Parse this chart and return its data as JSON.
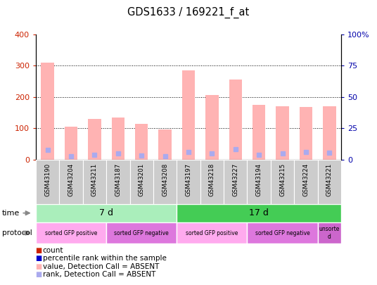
{
  "title": "GDS1633 / 169221_f_at",
  "samples": [
    "GSM43190",
    "GSM43204",
    "GSM43211",
    "GSM43187",
    "GSM43201",
    "GSM43208",
    "GSM43197",
    "GSM43218",
    "GSM43227",
    "GSM43194",
    "GSM43215",
    "GSM43224",
    "GSM43221"
  ],
  "bar_values": [
    310,
    105,
    130,
    135,
    115,
    95,
    285,
    205,
    255,
    175,
    170,
    167,
    170
  ],
  "rank_values": [
    31,
    11,
    16,
    20,
    13,
    10,
    25,
    19,
    33,
    16,
    19,
    25,
    21
  ],
  "ylim_left": [
    0,
    400
  ],
  "ylim_right": [
    0,
    100
  ],
  "yticks_left": [
    0,
    100,
    200,
    300,
    400
  ],
  "yticks_right": [
    0,
    25,
    50,
    75,
    100
  ],
  "yticklabels_right": [
    "0",
    "25",
    "50",
    "75",
    "100%"
  ],
  "bar_color": "#FFB3B3",
  "rank_color": "#AAAAEE",
  "time_groups": [
    {
      "label": "7 d",
      "start": 0,
      "end": 6,
      "color": "#AAEEBB"
    },
    {
      "label": "17 d",
      "start": 6,
      "end": 13,
      "color": "#44CC55"
    }
  ],
  "protocol_groups": [
    {
      "label": "sorted GFP positive",
      "start": 0,
      "end": 3,
      "color": "#FFAAEE"
    },
    {
      "label": "sorted GFP negative",
      "start": 3,
      "end": 6,
      "color": "#DD77DD"
    },
    {
      "label": "sorted GFP positive",
      "start": 6,
      "end": 9,
      "color": "#FFAAEE"
    },
    {
      "label": "sorted GFP negative",
      "start": 9,
      "end": 12,
      "color": "#DD77DD"
    },
    {
      "label": "unsorte\nd",
      "start": 12,
      "end": 13,
      "color": "#CC66CC"
    }
  ],
  "legend_items": [
    {
      "label": "count",
      "color": "#CC2200"
    },
    {
      "label": "percentile rank within the sample",
      "color": "#0000CC"
    },
    {
      "label": "value, Detection Call = ABSENT",
      "color": "#FFB3B3"
    },
    {
      "label": "rank, Detection Call = ABSENT",
      "color": "#AAAAEE"
    }
  ],
  "left_axis_color": "#CC2200",
  "right_axis_color": "#0000AA"
}
